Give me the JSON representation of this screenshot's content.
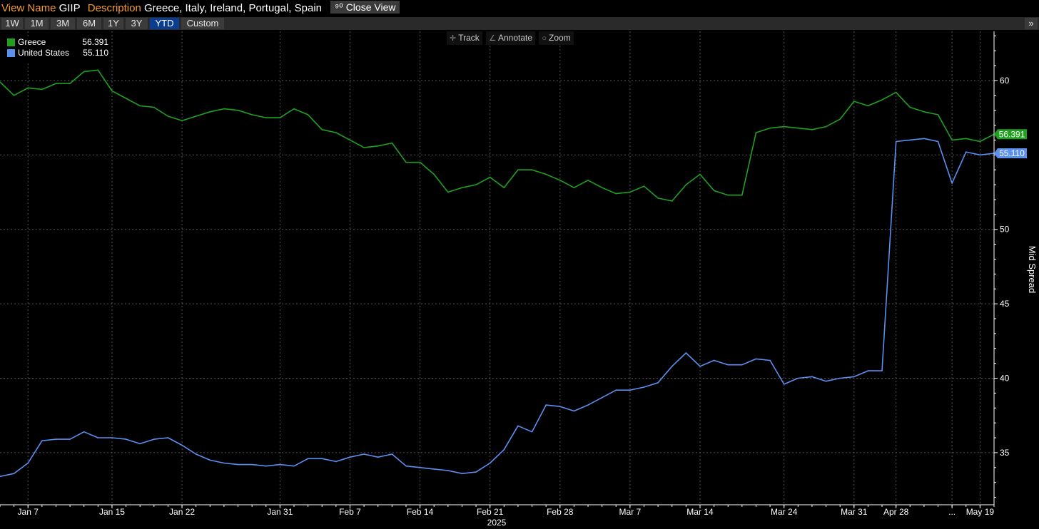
{
  "header": {
    "view_name_label": "View Name",
    "view_name": "GIIP",
    "description_label": "Description",
    "description": "Greece, Italy, Ireland, Portugal, Spain",
    "close_view_label": "Close View"
  },
  "ranges": [
    "1W",
    "1M",
    "3M",
    "6M",
    "1Y",
    "3Y",
    "YTD",
    "Custom"
  ],
  "active_range": "YTD",
  "expand_label": "»",
  "tools": {
    "track": "Track",
    "annotate": "Annotate",
    "zoom": "Zoom"
  },
  "colors": {
    "greece": "#1fa11f",
    "united_states": "#5b8ff0",
    "grid": "#555555",
    "header_label": "#f39c35",
    "active_range": "#0b3e8f"
  },
  "legend": [
    {
      "name": "Greece",
      "value": "56.391"
    },
    {
      "name": "United States",
      "value": "55.110"
    }
  ],
  "chart_data": {
    "type": "line",
    "title": "",
    "xlabel": "2025",
    "ylabel": "Mid Spread",
    "ylim": [
      31.5,
      63.3
    ],
    "yticks": [
      35,
      40,
      45,
      50,
      55,
      60
    ],
    "grid": true,
    "legend_position": "top-left",
    "x_tick_labels": [
      "Jan 7",
      "Jan 15",
      "Jan 22",
      "Jan 31",
      "Feb 7",
      "Feb 14",
      "Feb 21",
      "Feb 28",
      "Mar 7",
      "Mar 14",
      "Mar 24",
      "Mar 31",
      "Apr 28",
      "...",
      "May 19"
    ],
    "x_tick_index": [
      2,
      8,
      13,
      20,
      25,
      30,
      35,
      40,
      45,
      50,
      56,
      61,
      64,
      68,
      70
    ],
    "series": [
      {
        "name": "Greece",
        "values": [
          59.9,
          59.0,
          59.5,
          59.4,
          59.8,
          59.8,
          60.6,
          60.7,
          59.3,
          58.8,
          58.3,
          58.2,
          57.6,
          57.3,
          57.6,
          57.9,
          58.1,
          58.0,
          57.7,
          57.5,
          57.5,
          58.1,
          57.7,
          56.7,
          56.5,
          56.0,
          55.5,
          55.6,
          55.8,
          54.5,
          54.5,
          53.7,
          52.5,
          52.8,
          53.0,
          53.5,
          52.8,
          54.0,
          54.0,
          53.7,
          53.3,
          52.8,
          53.3,
          52.8,
          52.4,
          52.5,
          52.9,
          52.1,
          51.9,
          53.0,
          53.7,
          52.6,
          52.3,
          52.3,
          56.5,
          56.8,
          56.9,
          56.8,
          56.7,
          56.9,
          57.4,
          58.6,
          58.3,
          58.7,
          59.2,
          58.2,
          57.9,
          57.7,
          56.0,
          56.1,
          55.9,
          56.391
        ],
        "last_label": "56.391"
      },
      {
        "name": "United States",
        "values": [
          33.4,
          33.6,
          34.3,
          35.8,
          35.9,
          35.9,
          36.4,
          36.0,
          36.0,
          35.9,
          35.6,
          35.9,
          36.0,
          35.5,
          34.9,
          34.5,
          34.3,
          34.2,
          34.2,
          34.1,
          34.2,
          34.1,
          34.6,
          34.6,
          34.4,
          34.7,
          34.9,
          34.7,
          34.9,
          34.1,
          34.0,
          33.9,
          33.8,
          33.6,
          33.7,
          34.3,
          35.2,
          36.8,
          36.4,
          38.2,
          38.1,
          37.8,
          38.2,
          38.7,
          39.2,
          39.2,
          39.4,
          39.7,
          40.8,
          41.7,
          40.8,
          41.2,
          40.9,
          40.9,
          41.3,
          41.2,
          39.6,
          40.0,
          40.1,
          39.8,
          40.0,
          40.1,
          40.5,
          40.5,
          55.9,
          56.0,
          56.1,
          55.9,
          53.1,
          55.2,
          55.0,
          55.11
        ],
        "last_label": "55.110"
      }
    ]
  }
}
